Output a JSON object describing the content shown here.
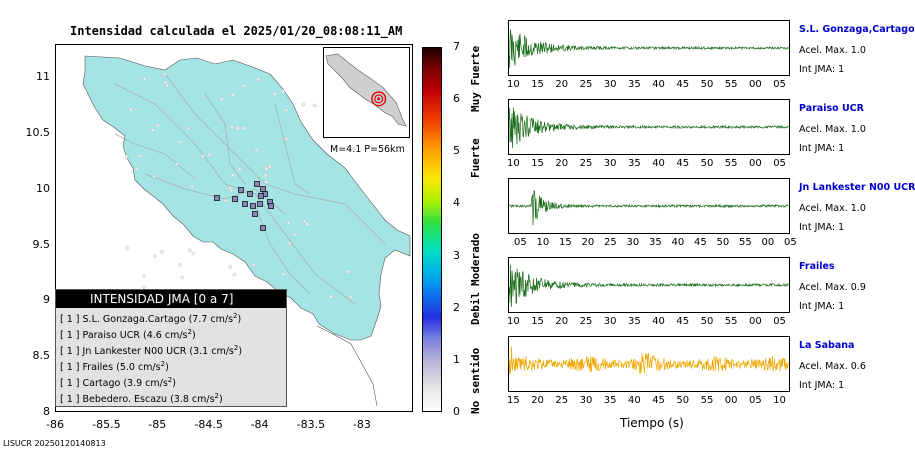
{
  "title": "Intensidad calculada el 2025/01/20_08:08:11_AM",
  "footer": "LISUCR 20250120140813",
  "map": {
    "y_ticks": [
      "11",
      "10.5",
      "10",
      "9.5",
      "9",
      "8.5",
      "8"
    ],
    "x_ticks": [
      "-86",
      "-85.5",
      "-85",
      "-84.5",
      "-84",
      "-83.5",
      "-83"
    ],
    "ylim": [
      8,
      11.3
    ],
    "xlim": [
      -86,
      -82.5
    ],
    "inset_label": "M=4.1 P=56km",
    "colors": {
      "land": "#a5e4e4",
      "water": "#ffffff",
      "station": "#8a86b8",
      "road": "#aaaaaa"
    }
  },
  "legend": {
    "header": "INTENSIDAD JMA [0 a 7]",
    "rows": [
      {
        "jma": "[ 1 ]",
        "name": "S.L. Gonzaga.Cartago",
        "value": "(7.7 cm/s",
        "sup": "2",
        "close": ")"
      },
      {
        "jma": "[ 1 ]",
        "name": "Paraiso UCR",
        "value": "(4.6 cm/s",
        "sup": "2",
        "close": ")"
      },
      {
        "jma": "[ 1 ]",
        "name": "Jn Lankester N00 UCR",
        "value": "(3.1 cm/s",
        "sup": "2",
        "close": ")"
      },
      {
        "jma": "[ 1 ]",
        "name": "Frailes",
        "value": "(5.0 cm/s",
        "sup": "2",
        "close": ")"
      },
      {
        "jma": "[ 1 ]",
        "name": "Cartago",
        "value": "(3.9 cm/s",
        "sup": "2",
        "close": ")"
      },
      {
        "jma": "[ 1 ]",
        "name": "Bebedero. Escazu",
        "value": "(3.8 cm/s",
        "sup": "2",
        "close": ")"
      }
    ]
  },
  "colorbar": {
    "numbers": [
      "7",
      "6",
      "5",
      "4",
      "3",
      "2",
      "1",
      "0"
    ],
    "categories": [
      "Muy Fuerte",
      "Fuerte",
      "Moderado",
      "Debil",
      "No sentido"
    ]
  },
  "chart_data": {
    "type": "line",
    "xlabel": "Tiempo (s)",
    "panels": [
      {
        "station": "S.L. Gonzaga,Cartago",
        "acel": "Acel. Max. 1.0",
        "jma": "Int JMA: 1",
        "color": "#1a6d1a",
        "ticks": [
          "10",
          "15",
          "20",
          "25",
          "30",
          "35",
          "40",
          "45",
          "50",
          "55",
          "00",
          "05"
        ],
        "onset": 0.0
      },
      {
        "station": "Paraiso UCR",
        "acel": "Acel. Max. 1.0",
        "jma": "Int JMA: 1",
        "color": "#1a6d1a",
        "ticks": [
          "10",
          "15",
          "20",
          "25",
          "30",
          "35",
          "40",
          "45",
          "50",
          "55",
          "00",
          "05"
        ],
        "onset": 0.0
      },
      {
        "station": "Jn Lankester N00 UCR",
        "acel": "Acel. Max. 1.0",
        "jma": "Int JMA: 1",
        "color": "#1a6d1a",
        "ticks": [
          "05",
          "10",
          "15",
          "20",
          "25",
          "30",
          "35",
          "40",
          "45",
          "50",
          "55",
          "00",
          "05"
        ],
        "onset": 0.08
      },
      {
        "station": "Frailes",
        "acel": "Acel. Max. 0.9",
        "jma": "Int JMA: 1",
        "color": "#1a6d1a",
        "ticks": [
          "10",
          "15",
          "20",
          "25",
          "30",
          "35",
          "40",
          "45",
          "50",
          "55",
          "00",
          "05"
        ],
        "onset": 0.0
      },
      {
        "station": "La Sabana",
        "acel": "Acel. Max. 0.6",
        "jma": "Int JMA: 1",
        "color": "#f0a800",
        "ticks": [
          "15",
          "20",
          "25",
          "30",
          "35",
          "40",
          "45",
          "50",
          "55",
          "00",
          "05",
          "10"
        ],
        "onset": 0.0
      }
    ]
  }
}
